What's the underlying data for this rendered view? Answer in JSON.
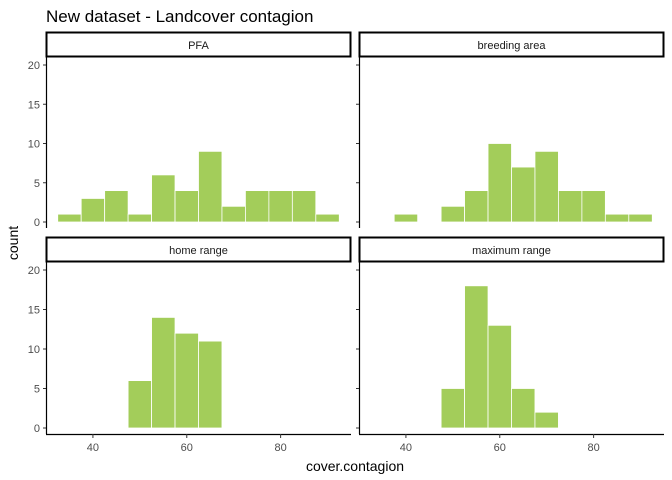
{
  "chart_data": {
    "type": "bar",
    "title": "New dataset - Landcover contagion",
    "xlabel": "cover.contagion",
    "ylabel": "count",
    "bin_width": 5,
    "xlim": [
      30,
      95
    ],
    "ylim": [
      0,
      20
    ],
    "x_ticks": [
      40,
      60,
      80
    ],
    "y_ticks": [
      0,
      5,
      10,
      15,
      20
    ],
    "grid": false,
    "bar_color": "#a3cd5a",
    "bar_outline": "#ffffff",
    "panels": [
      {
        "name": "PFA",
        "bins": [
          {
            "x": 35,
            "count": 1
          },
          {
            "x": 40,
            "count": 3
          },
          {
            "x": 45,
            "count": 4
          },
          {
            "x": 50,
            "count": 1
          },
          {
            "x": 55,
            "count": 6
          },
          {
            "x": 60,
            "count": 4
          },
          {
            "x": 65,
            "count": 9
          },
          {
            "x": 70,
            "count": 2
          },
          {
            "x": 75,
            "count": 4
          },
          {
            "x": 80,
            "count": 4
          },
          {
            "x": 85,
            "count": 4
          },
          {
            "x": 90,
            "count": 1
          }
        ]
      },
      {
        "name": "breeding area",
        "bins": [
          {
            "x": 40,
            "count": 1
          },
          {
            "x": 50,
            "count": 2
          },
          {
            "x": 55,
            "count": 4
          },
          {
            "x": 60,
            "count": 10
          },
          {
            "x": 65,
            "count": 7
          },
          {
            "x": 70,
            "count": 9
          },
          {
            "x": 75,
            "count": 4
          },
          {
            "x": 80,
            "count": 4
          },
          {
            "x": 85,
            "count": 1
          },
          {
            "x": 90,
            "count": 1
          }
        ]
      },
      {
        "name": "home range",
        "bins": [
          {
            "x": 50,
            "count": 6
          },
          {
            "x": 55,
            "count": 14
          },
          {
            "x": 60,
            "count": 12
          },
          {
            "x": 65,
            "count": 11
          }
        ]
      },
      {
        "name": "maximum range",
        "bins": [
          {
            "x": 50,
            "count": 5
          },
          {
            "x": 55,
            "count": 18
          },
          {
            "x": 60,
            "count": 13
          },
          {
            "x": 65,
            "count": 5
          },
          {
            "x": 70,
            "count": 2
          }
        ]
      }
    ]
  }
}
